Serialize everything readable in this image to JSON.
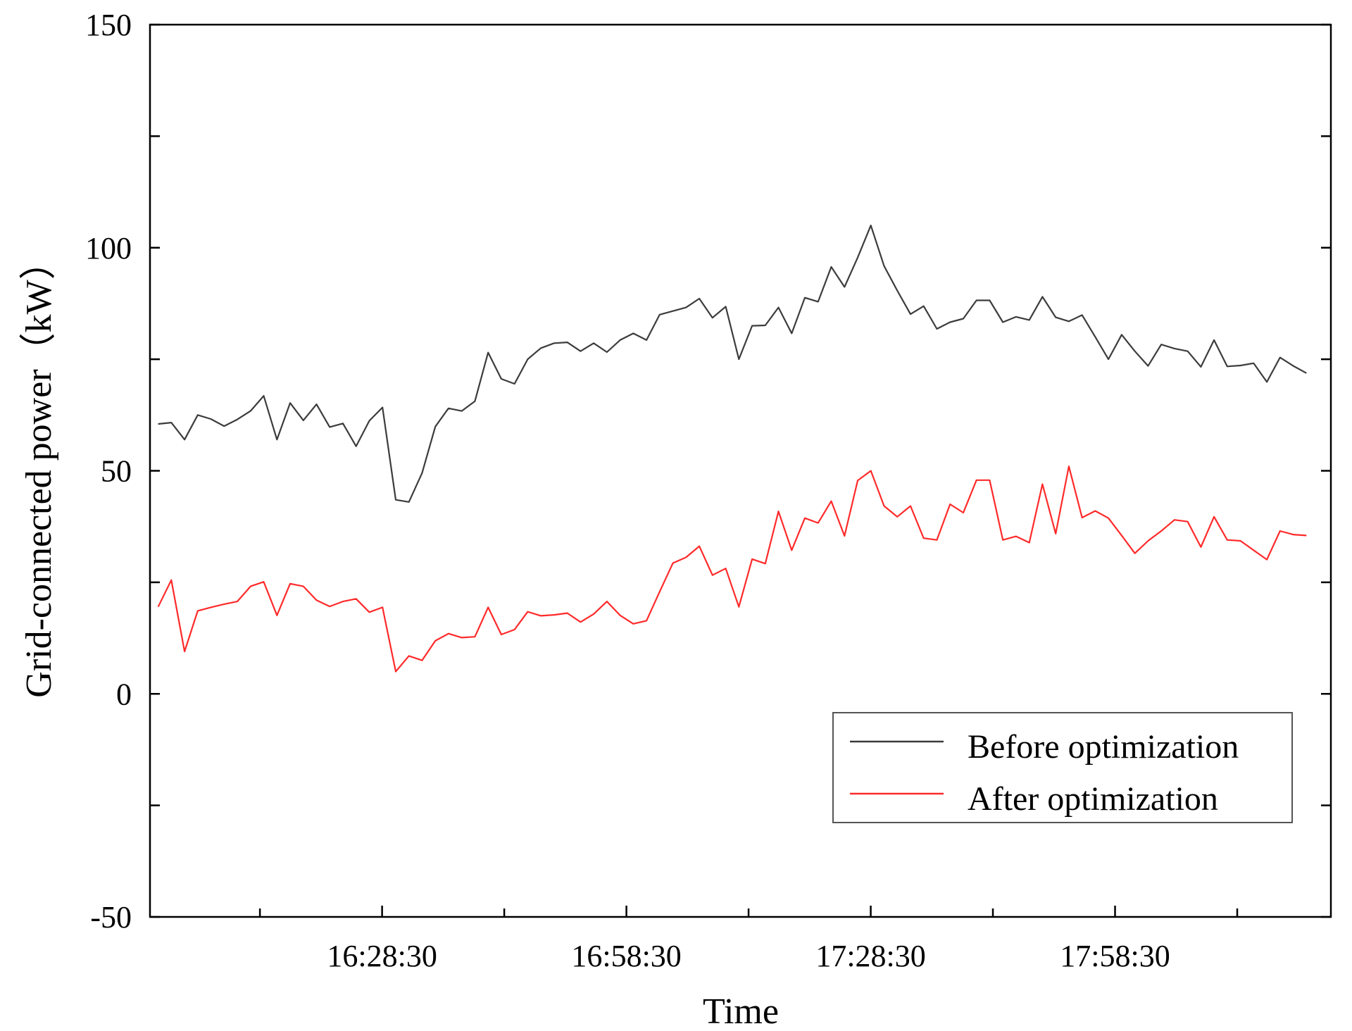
{
  "chart_data": {
    "type": "line",
    "xlabel": "Time",
    "ylabel": "Grid-connected power（kW）",
    "ylim": [
      -50,
      150
    ],
    "yticks": [
      -50,
      0,
      50,
      100,
      150
    ],
    "xlim": [
      "16:00:00",
      "18:25:00"
    ],
    "xtick_labels": [
      "16:28:30",
      "16:58:30",
      "17:28:30",
      "17:58:30"
    ],
    "grid": false,
    "legend_position": "bottom-right",
    "series": [
      {
        "name": "Before optimization",
        "color": "#3c3c3c",
        "values": [
          60.5,
          60.8,
          57,
          62.5,
          61.6,
          60,
          61.5,
          63.4,
          66.8,
          57,
          65.2,
          61.3,
          64.9,
          59.8,
          60.6,
          55.5,
          61.2,
          64.2,
          43.5,
          43,
          49.5,
          59.9,
          64,
          63.4,
          65.6,
          76.5,
          70.6,
          69.5,
          75,
          77.5,
          78.6,
          78.8,
          76.8,
          78.6,
          76.6,
          79.3,
          80.8,
          79.3,
          85,
          85.8,
          86.6,
          88.6,
          84.3,
          86.8,
          75,
          82.5,
          82.6,
          86.6,
          80.8,
          88.8,
          87.9,
          95.7,
          91.2,
          97.8,
          105,
          95.9,
          90.4,
          85.1,
          86.9,
          81.8,
          83.3,
          84.1,
          88.2,
          88.2,
          83.3,
          84.5,
          83.8,
          89,
          84.4,
          83.5,
          84.9,
          80,
          75,
          80.5,
          76.8,
          73.5,
          78.3,
          77.4,
          76.8,
          73.3,
          79.3,
          73.4,
          73.6,
          74.1,
          69.9,
          75.4,
          73.5,
          71.9
        ]
      },
      {
        "name": "After optimization",
        "color": "#ff2a2a",
        "values": [
          19.5,
          25.5,
          9.5,
          18.6,
          19.4,
          20.1,
          20.7,
          24.1,
          25.1,
          17.6,
          24.7,
          24.1,
          21,
          19.6,
          20.7,
          21.3,
          18.3,
          19.4,
          5,
          8.5,
          7.5,
          11.9,
          13.5,
          12.6,
          12.8,
          19.4,
          13.3,
          14.4,
          18.4,
          17.5,
          17.7,
          18.1,
          16.1,
          17.9,
          20.7,
          17.6,
          15.7,
          16.4,
          22.9,
          29.3,
          30.6,
          33.1,
          26.6,
          28.1,
          19.5,
          30.2,
          29.2,
          40.9,
          32.2,
          39.4,
          38.3,
          43.2,
          35.4,
          47.8,
          50,
          42.1,
          39.7,
          42.1,
          34.9,
          34.5,
          42.5,
          40.6,
          47.9,
          47.9,
          34.5,
          35.3,
          33.9,
          47,
          35.9,
          51,
          39.5,
          41,
          39.4,
          35.5,
          31.5,
          34.3,
          36.5,
          39,
          38.6,
          32.9,
          39.7,
          34.5,
          34.3,
          32.2,
          30.1,
          36.5,
          35.7,
          35.5
        ]
      }
    ]
  }
}
